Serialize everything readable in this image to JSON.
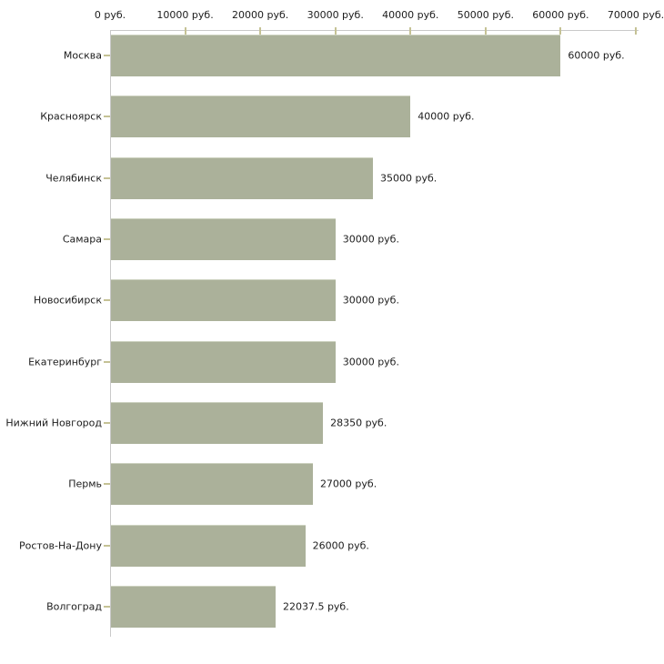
{
  "chart_data": {
    "type": "bar",
    "orientation": "horizontal",
    "title": "",
    "xlabel": "",
    "ylabel": "",
    "axis_position": "top",
    "xlim": [
      0,
      70000
    ],
    "grid": false,
    "legend": false,
    "categories": [
      "Москва",
      "Красноярск",
      "Челябинск",
      "Самара",
      "Новосибирск",
      "Екатеринбург",
      "Нижний Новгород",
      "Пермь",
      "Ростов-На-Дону",
      "Волгоград"
    ],
    "values": [
      60000,
      40000,
      35000,
      30000,
      30000,
      30000,
      28350,
      27000,
      26000,
      22037.5
    ],
    "value_labels": [
      "60000 руб.",
      "40000 руб.",
      "35000 руб.",
      "30000 руб.",
      "30000 руб.",
      "30000 руб.",
      "28350 руб.",
      "27000 руб.",
      "26000 руб.",
      "22037.5 руб."
    ],
    "x_ticks": [
      0,
      10000,
      20000,
      30000,
      40000,
      50000,
      60000,
      70000
    ],
    "x_tick_labels": [
      "0 руб.",
      "10000 руб.",
      "20000 руб.",
      "30000 руб.",
      "40000 руб.",
      "50000 руб.",
      "60000 руб.",
      "70000 руб."
    ],
    "colors": {
      "bar_fill": "#abb19a",
      "bar_top_edge": "#cdd2c0",
      "axis_line": "#c9c9c9",
      "tick_mark": "#c5c295",
      "text": "#1c1c1c"
    }
  }
}
